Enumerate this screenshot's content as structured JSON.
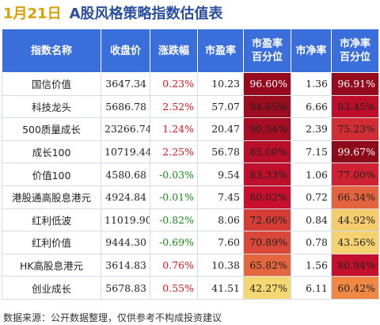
{
  "header": {
    "date": "1月21日",
    "title": "A股风格策略指数估值表"
  },
  "columns": [
    "指数名称",
    "收盘价",
    "涨跌幅",
    "市盈率",
    "市盈率\n百分位",
    "市净率",
    "市净率\n百分位"
  ],
  "rows": [
    {
      "name": "国信价值",
      "close": "3647.34",
      "change": "0.23%",
      "pe": "10.23",
      "pe_pct": "96.60%",
      "pb": "1.36",
      "pb_pct": "96.91%"
    },
    {
      "name": "科技龙头",
      "close": "5686.78",
      "change": "2.52%",
      "pe": "57.07",
      "pe_pct": "94.65%",
      "pb": "6.66",
      "pb_pct": "83.45%"
    },
    {
      "name": "500质量成长",
      "close": "23266.74",
      "change": "1.24%",
      "pe": "20.47",
      "pe_pct": "90.34%",
      "pb": "2.39",
      "pb_pct": "75.23%"
    },
    {
      "name": "成长100",
      "close": "10719.44",
      "change": "2.25%",
      "pe": "56.78",
      "pe_pct": "85.00%",
      "pb": "7.15",
      "pb_pct": "99.67%"
    },
    {
      "name": "价值100",
      "close": "4580.68",
      "change": "-0.03%",
      "pe": "9.54",
      "pe_pct": "83.33%",
      "pb": "1.06",
      "pb_pct": "77.00%"
    },
    {
      "name": "港股通高股息港元",
      "close": "4924.84",
      "change": "-0.01%",
      "pe": "7.45",
      "pe_pct": "80.02%",
      "pb": "0.72",
      "pb_pct": "66.34%"
    },
    {
      "name": "红利低波",
      "close": "11019.90",
      "change": "-0.82%",
      "pe": "8.06",
      "pe_pct": "72.66%",
      "pb": "0.84",
      "pb_pct": "44.92%"
    },
    {
      "name": "红利价值",
      "close": "9444.30",
      "change": "-0.69%",
      "pe": "7.60",
      "pe_pct": "70.89%",
      "pb": "0.78",
      "pb_pct": "43.56%"
    },
    {
      "name": "HK高股息港元",
      "close": "3614.83",
      "change": "0.76%",
      "pe": "10.38",
      "pe_pct": "65.82%",
      "pb": "1.56",
      "pb_pct": "80.94%"
    },
    {
      "name": "创业成长",
      "close": "5678.83",
      "change": "0.55%",
      "pe": "41.51",
      "pe_pct": "42.27%",
      "pb": "6.11",
      "pb_pct": "60.42%"
    }
  ],
  "colors": {
    "header_bg": "#3a6fdb",
    "up": "#e0141e",
    "down": "#1a8a1a",
    "heat_low": "#f6e27a",
    "heat_mid": "#f08a46",
    "heat_high": "#c8102e",
    "heat_max": "#8b0a1a"
  },
  "footer": "数据来源：公开数据整理，仅供参考不构成投资建议"
}
